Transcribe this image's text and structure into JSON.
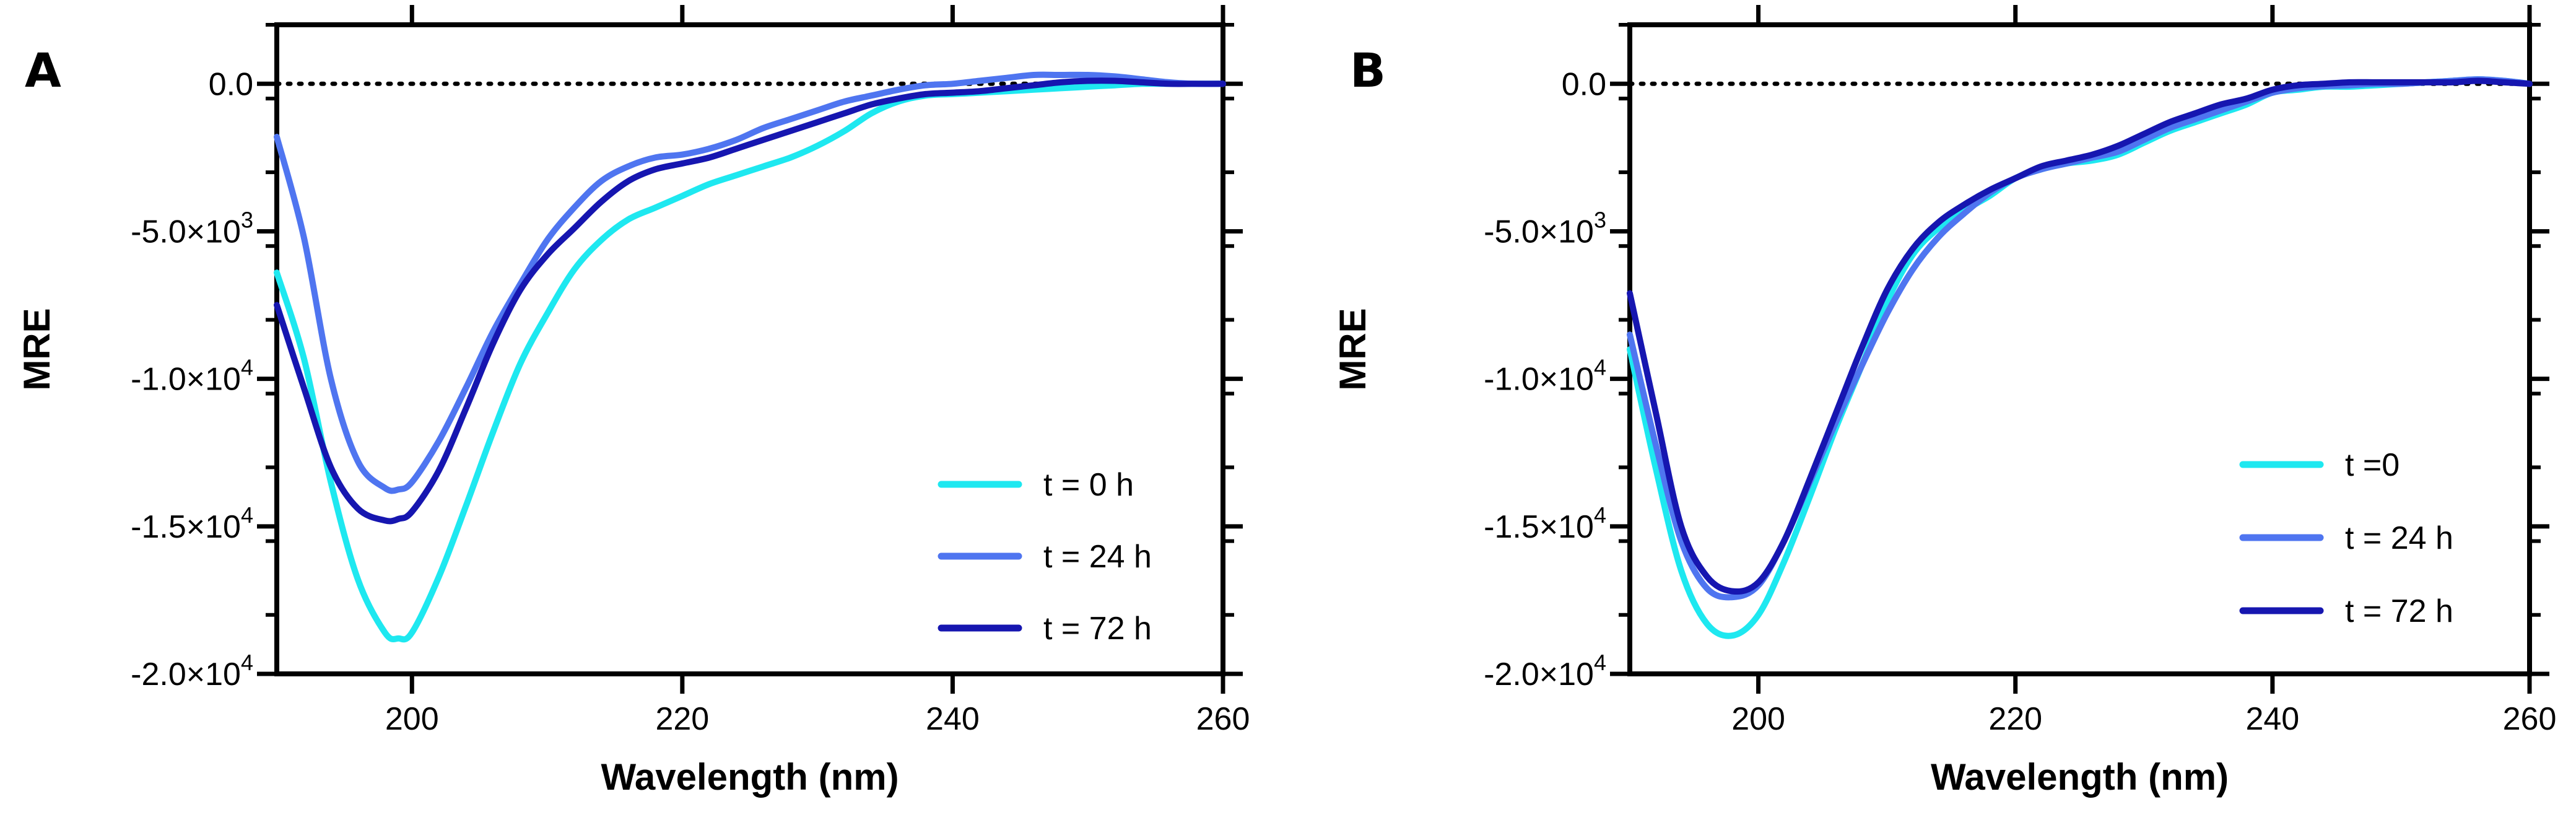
{
  "chart_data": [
    {
      "panel": "A",
      "type": "line",
      "xlabel": "Wavelength (nm)",
      "ylabel": "MRE",
      "xlim": [
        190,
        260
      ],
      "ylim": [
        -20000,
        2000
      ],
      "x_ticks": [
        {
          "value": 200,
          "label": "200"
        },
        {
          "value": 220,
          "label": "220"
        },
        {
          "value": 240,
          "label": "240"
        },
        {
          "value": 260,
          "label": "260"
        }
      ],
      "y_ticks": [
        {
          "value": 0,
          "label": "0.0",
          "exp": ""
        },
        {
          "value": -5000,
          "label": "-5.0×10",
          "exp": "3"
        },
        {
          "value": -10000,
          "label": "-1.0×10",
          "exp": "4"
        },
        {
          "value": -15000,
          "label": "-1.5×10",
          "exp": "4"
        },
        {
          "value": -20000,
          "label": "-2.0×10",
          "exp": "4"
        }
      ],
      "legend_position": "bottom-right",
      "series": [
        {
          "name": "t = 0 h",
          "color": "#1ee8f0",
          "x": [
            190,
            192,
            194,
            196,
            198,
            199,
            200,
            202,
            204,
            206,
            208,
            210,
            212,
            214,
            216,
            218,
            220,
            222,
            224,
            226,
            228,
            230,
            232,
            234,
            236,
            238,
            240,
            242,
            244,
            246,
            248,
            250,
            252,
            254,
            256,
            258,
            260
          ],
          "y": [
            -6400,
            -9300,
            -13500,
            -16800,
            -18600,
            -18800,
            -18600,
            -16700,
            -14300,
            -11800,
            -9500,
            -7800,
            -6300,
            -5300,
            -4600,
            -4200,
            -3800,
            -3400,
            -3100,
            -2800,
            -2500,
            -2100,
            -1600,
            -1000,
            -600,
            -400,
            -350,
            -300,
            -250,
            -200,
            -150,
            -100,
            -50,
            0,
            0,
            0,
            0
          ]
        },
        {
          "name": "t = 24 h",
          "color": "#4f75f0",
          "x": [
            190,
            192,
            194,
            196,
            198,
            199,
            200,
            202,
            204,
            206,
            208,
            210,
            212,
            214,
            216,
            218,
            220,
            222,
            224,
            226,
            228,
            230,
            232,
            234,
            236,
            238,
            240,
            242,
            244,
            246,
            248,
            250,
            252,
            254,
            256,
            258,
            260
          ],
          "y": [
            -1800,
            -5200,
            -10000,
            -12800,
            -13700,
            -13750,
            -13500,
            -12100,
            -10300,
            -8400,
            -6800,
            -5300,
            -4200,
            -3300,
            -2800,
            -2500,
            -2400,
            -2200,
            -1900,
            -1500,
            -1200,
            -900,
            -600,
            -400,
            -200,
            -50,
            0,
            100,
            200,
            300,
            300,
            300,
            250,
            150,
            50,
            0,
            0
          ]
        },
        {
          "name": "t = 72 h",
          "color": "#1616b0",
          "x": [
            190,
            192,
            194,
            196,
            198,
            199,
            200,
            202,
            204,
            206,
            208,
            210,
            212,
            214,
            216,
            218,
            220,
            222,
            224,
            226,
            228,
            230,
            232,
            234,
            236,
            238,
            240,
            242,
            244,
            246,
            248,
            250,
            252,
            254,
            256,
            258,
            260
          ],
          "y": [
            -7500,
            -10300,
            -13000,
            -14400,
            -14800,
            -14750,
            -14500,
            -13100,
            -11000,
            -8800,
            -7000,
            -5800,
            -4900,
            -4000,
            -3300,
            -2900,
            -2700,
            -2500,
            -2200,
            -1900,
            -1600,
            -1300,
            -1000,
            -700,
            -500,
            -350,
            -300,
            -250,
            -150,
            -50,
            50,
            100,
            100,
            50,
            0,
            0,
            0
          ]
        }
      ]
    },
    {
      "panel": "B",
      "type": "line",
      "xlabel": "Wavelength (nm)",
      "ylabel": "MRE",
      "xlim": [
        190,
        260
      ],
      "ylim": [
        -20000,
        2000
      ],
      "x_ticks": [
        {
          "value": 200,
          "label": "200"
        },
        {
          "value": 220,
          "label": "220"
        },
        {
          "value": 240,
          "label": "240"
        },
        {
          "value": 260,
          "label": "260"
        }
      ],
      "y_ticks": [
        {
          "value": 0,
          "label": "0.0",
          "exp": ""
        },
        {
          "value": -5000,
          "label": "-5.0×10",
          "exp": "3"
        },
        {
          "value": -10000,
          "label": "-1.0×10",
          "exp": "4"
        },
        {
          "value": -15000,
          "label": "-1.5×10",
          "exp": "4"
        },
        {
          "value": -20000,
          "label": "-2.0×10",
          "exp": "4"
        }
      ],
      "legend_position": "bottom-right",
      "series": [
        {
          "name": "t =0",
          "color": "#1ee8f0",
          "x": [
            190,
            192,
            194,
            196,
            198,
            200,
            202,
            204,
            206,
            208,
            210,
            212,
            214,
            216,
            218,
            220,
            222,
            224,
            226,
            228,
            230,
            232,
            234,
            236,
            238,
            240,
            242,
            244,
            246,
            248,
            250,
            252,
            254,
            256,
            258,
            260
          ],
          "y": [
            -9000,
            -13000,
            -16500,
            -18300,
            -18700,
            -18000,
            -16200,
            -14000,
            -11700,
            -9600,
            -7400,
            -5800,
            -4900,
            -4300,
            -3800,
            -3200,
            -2900,
            -2700,
            -2600,
            -2400,
            -2000,
            -1600,
            -1300,
            -1000,
            -700,
            -300,
            -200,
            -100,
            -100,
            -50,
            0,
            50,
            100,
            150,
            100,
            0
          ]
        },
        {
          "name": "t = 24 h",
          "color": "#4f75f0",
          "x": [
            190,
            192,
            194,
            196,
            198,
            200,
            202,
            204,
            206,
            208,
            210,
            212,
            214,
            216,
            218,
            220,
            222,
            224,
            226,
            228,
            230,
            232,
            234,
            236,
            238,
            240,
            242,
            244,
            246,
            248,
            250,
            252,
            254,
            256,
            258,
            260
          ],
          "y": [
            -8500,
            -12200,
            -15500,
            -17100,
            -17400,
            -17000,
            -15500,
            -13500,
            -11500,
            -9600,
            -7800,
            -6300,
            -5200,
            -4400,
            -3700,
            -3200,
            -2900,
            -2700,
            -2500,
            -2300,
            -1900,
            -1500,
            -1200,
            -900,
            -600,
            -300,
            -150,
            -80,
            -50,
            0,
            0,
            50,
            100,
            150,
            100,
            0
          ]
        },
        {
          "name": "t = 72 h",
          "color": "#1616b0",
          "x": [
            190,
            192,
            194,
            196,
            198,
            200,
            202,
            204,
            206,
            208,
            210,
            212,
            214,
            216,
            218,
            220,
            222,
            224,
            226,
            228,
            230,
            232,
            234,
            236,
            238,
            240,
            242,
            244,
            246,
            248,
            250,
            252,
            254,
            256,
            258,
            260
          ],
          "y": [
            -7100,
            -11100,
            -15000,
            -16700,
            -17200,
            -16900,
            -15500,
            -13400,
            -11200,
            -9000,
            -7000,
            -5600,
            -4700,
            -4100,
            -3600,
            -3200,
            -2800,
            -2600,
            -2400,
            -2100,
            -1700,
            -1300,
            -1000,
            -700,
            -500,
            -200,
            -50,
            0,
            50,
            50,
            50,
            50,
            50,
            100,
            50,
            0
          ]
        }
      ]
    }
  ]
}
